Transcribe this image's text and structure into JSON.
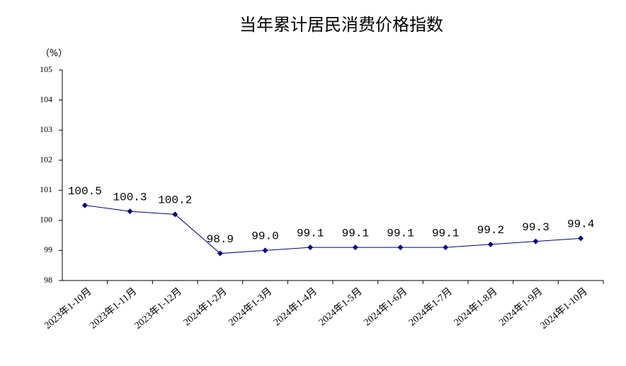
{
  "chart_data": {
    "type": "line",
    "title": "当年累计居民消费价格指数",
    "y_unit": "（%）",
    "categories": [
      "2023年1-10月",
      "2023年1-11月",
      "2023年1-12月",
      "2024年1-2月",
      "2024年1-3月",
      "2024年1-4月",
      "2024年1-5月",
      "2024年1-6月",
      "2024年1-7月",
      "2024年1-8月",
      "2024年1-9月",
      "2024年1-10月"
    ],
    "series": [
      {
        "name": "当年累计居民消费价格指数",
        "color": "#000080",
        "values": [
          100.5,
          100.3,
          100.2,
          98.9,
          99,
          99.1,
          99.1,
          99.1,
          99.1,
          99.2,
          99.3,
          99.4
        ],
        "value_labels": [
          "100.5",
          "100.3",
          "100.2",
          "98.9",
          "99.0",
          "99.1",
          "99.1",
          "99.1",
          "99.1",
          "99.2",
          "99.3",
          "99.4"
        ]
      }
    ],
    "ylim": [
      98,
      105
    ],
    "yticks": [
      98,
      99,
      100,
      101,
      102,
      103,
      104,
      105
    ],
    "grid": false
  }
}
